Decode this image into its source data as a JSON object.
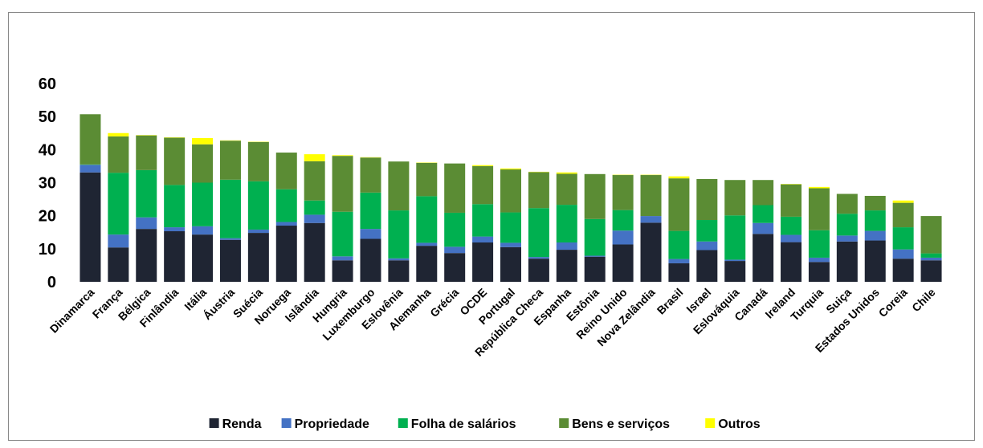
{
  "chart_data": {
    "type": "stacked-bar",
    "categories": [
      "Dinamarca",
      "França",
      "Bélgica",
      "Finlândia",
      "Itália",
      "Áustria",
      "Suécia",
      "Noruega",
      "Islândia",
      "Hungria",
      "Luxemburgo",
      "Eslovênia",
      "Alemanha",
      "Grécia",
      "OCDE",
      "Portugal",
      "República Checa",
      "Espanha",
      "Estônia",
      "Reino Unido",
      "Nova Zelândia",
      "Brasil",
      "Israel",
      "Eslováquia",
      "Canadá",
      "Ireland",
      "Turquia",
      "Suiça",
      "Estados Unidos",
      "Coreia",
      "Chile"
    ],
    "series": [
      {
        "name": "Renda",
        "color": "#1f2533",
        "values": [
          33.1,
          10.4,
          16,
          15.3,
          14.3,
          12.7,
          14.8,
          17,
          17.8,
          6.5,
          13,
          6.5,
          10.9,
          8.7,
          11.9,
          10.5,
          7,
          9.7,
          7.6,
          11.3,
          17.9,
          5.6,
          9.6,
          6.3,
          14.5,
          12,
          6,
          12.2,
          12.5,
          7,
          6.5
        ]
      },
      {
        "name": "Propriedade",
        "color": "#4472c4",
        "values": [
          2.3,
          3.9,
          3.5,
          1.2,
          2.5,
          0.5,
          1,
          1.1,
          2.5,
          1.2,
          3,
          0.6,
          0.9,
          1.9,
          1.8,
          1.3,
          0.5,
          2.2,
          0.3,
          4.2,
          2,
          1.3,
          2.6,
          0.4,
          3.3,
          2.2,
          1.3,
          1.8,
          2.9,
          2.8,
          0.8
        ]
      },
      {
        "name": "Folha de salários",
        "color": "#00b050",
        "values": [
          0.1,
          18.7,
          14.3,
          12.8,
          13.2,
          17.7,
          14.6,
          9.9,
          4.3,
          13.5,
          11,
          14.5,
          14.1,
          10.3,
          9.8,
          9.2,
          14.8,
          11.4,
          11.1,
          6.2,
          0,
          8.5,
          6.5,
          13.4,
          5.4,
          5.5,
          8.3,
          6.6,
          6.2,
          6.7,
          1.3
        ]
      },
      {
        "name": "Bens e serviços",
        "color": "#5b8c34",
        "values": [
          15.2,
          11,
          10.5,
          14.3,
          11.6,
          11.8,
          11.9,
          11.1,
          11.9,
          16.9,
          10.6,
          14.8,
          10.1,
          14.9,
          11.5,
          13,
          10.9,
          9.4,
          13.6,
          10.6,
          12.4,
          15.9,
          12.4,
          10.7,
          7.6,
          9.8,
          12.7,
          6,
          4.4,
          7.4,
          11.3
        ]
      },
      {
        "name": "Outros",
        "color": "#ffff00",
        "values": [
          0,
          1,
          0.1,
          0.1,
          1.9,
          0.1,
          0.1,
          0,
          2.1,
          0.2,
          0.1,
          0,
          0.1,
          0,
          0.3,
          0.3,
          0.1,
          0.4,
          0,
          0.1,
          0.1,
          0.6,
          0,
          0,
          0,
          0.1,
          0.4,
          0,
          0,
          0.7,
          0
        ]
      }
    ],
    "ylim": [
      0,
      60
    ],
    "yticks": [
      0,
      10,
      20,
      30,
      40,
      50,
      60
    ],
    "grid": false,
    "legend": "bottom"
  }
}
